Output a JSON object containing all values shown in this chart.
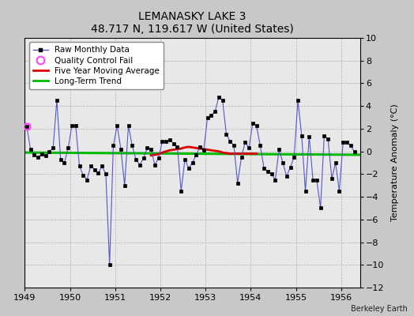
{
  "title": "LEMANASKY LAKE 3",
  "subtitle": "48.717 N, 119.617 W (United States)",
  "ylabel": "Temperature Anomaly (°C)",
  "credit": "Berkeley Earth",
  "xlim": [
    1949.0,
    1956.42
  ],
  "ylim": [
    -12,
    10
  ],
  "yticks": [
    -12,
    -10,
    -8,
    -6,
    -4,
    -2,
    0,
    2,
    4,
    6,
    8,
    10
  ],
  "xticks": [
    1949,
    1950,
    1951,
    1952,
    1953,
    1954,
    1955,
    1956
  ],
  "fig_bg_color": "#c8c8c8",
  "plot_bg_color": "#e8e8e8",
  "raw_x": [
    1949.042,
    1949.125,
    1949.208,
    1949.292,
    1949.375,
    1949.458,
    1949.542,
    1949.625,
    1949.708,
    1949.792,
    1949.875,
    1949.958,
    1950.042,
    1950.125,
    1950.208,
    1950.292,
    1950.375,
    1950.458,
    1950.542,
    1950.625,
    1950.708,
    1950.792,
    1950.875,
    1950.958,
    1951.042,
    1951.125,
    1951.208,
    1951.292,
    1951.375,
    1951.458,
    1951.542,
    1951.625,
    1951.708,
    1951.792,
    1951.875,
    1951.958,
    1952.042,
    1952.125,
    1952.208,
    1952.292,
    1952.375,
    1952.458,
    1952.542,
    1952.625,
    1952.708,
    1952.792,
    1952.875,
    1952.958,
    1953.042,
    1953.125,
    1953.208,
    1953.292,
    1953.375,
    1953.458,
    1953.542,
    1953.625,
    1953.708,
    1953.792,
    1953.875,
    1953.958,
    1954.042,
    1954.125,
    1954.208,
    1954.292,
    1954.375,
    1954.458,
    1954.542,
    1954.625,
    1954.708,
    1954.792,
    1954.875,
    1954.958,
    1955.042,
    1955.125,
    1955.208,
    1955.292,
    1955.375,
    1955.458,
    1955.542,
    1955.625,
    1955.708,
    1955.792,
    1955.875,
    1955.958,
    1956.042,
    1956.125,
    1956.208,
    1956.292
  ],
  "raw_y": [
    2.2,
    0.2,
    -0.3,
    -0.5,
    -0.2,
    -0.4,
    0.0,
    0.3,
    4.5,
    -0.7,
    -1.0,
    0.3,
    2.3,
    2.3,
    -1.3,
    -2.1,
    -2.5,
    -1.3,
    -1.6,
    -1.9,
    -1.3,
    -2.0,
    -10.0,
    0.5,
    2.3,
    0.2,
    -3.0,
    2.3,
    0.5,
    -0.7,
    -1.2,
    -0.6,
    0.3,
    0.2,
    -1.2,
    -0.6,
    0.9,
    0.9,
    1.0,
    0.7,
    0.4,
    -3.5,
    -0.7,
    -1.5,
    -1.0,
    -0.3,
    0.4,
    0.1,
    3.0,
    3.2,
    3.5,
    4.8,
    4.5,
    1.5,
    0.9,
    0.5,
    -2.8,
    -0.5,
    0.8,
    0.3,
    2.5,
    2.3,
    0.5,
    -1.5,
    -1.8,
    -2.0,
    -2.5,
    0.2,
    -1.0,
    -2.2,
    -1.4,
    -0.5,
    4.5,
    1.4,
    -3.5,
    1.3,
    -2.5,
    -2.5,
    -5.0,
    1.4,
    1.1,
    -2.4,
    -1.0,
    -3.5,
    0.8,
    0.8,
    0.5,
    0.0
  ],
  "qc_fail_x": [
    1949.042
  ],
  "qc_fail_y": [
    2.2
  ],
  "ma_x": [
    1951.792,
    1951.875,
    1951.958,
    1952.042,
    1952.125,
    1952.208,
    1952.292,
    1952.375,
    1952.458,
    1952.542,
    1952.625,
    1952.708,
    1952.792,
    1952.875,
    1952.958,
    1953.042,
    1953.125,
    1953.208,
    1953.292,
    1953.375,
    1953.458,
    1953.542,
    1953.625,
    1953.708,
    1953.792,
    1953.875,
    1953.958,
    1954.042,
    1954.125
  ],
  "ma_y": [
    -0.35,
    -0.3,
    -0.25,
    -0.1,
    0.0,
    0.1,
    0.15,
    0.2,
    0.25,
    0.35,
    0.4,
    0.35,
    0.3,
    0.25,
    0.2,
    0.15,
    0.1,
    0.05,
    0.0,
    -0.1,
    -0.15,
    -0.2,
    -0.2,
    -0.2,
    -0.2,
    -0.2,
    -0.2,
    -0.2,
    -0.2
  ],
  "trend_x": [
    1949.0,
    1956.42
  ],
  "trend_y": [
    -0.1,
    -0.3
  ],
  "raw_color": "#5555cc",
  "raw_marker_color": "#000000",
  "ma_color": "#dd0000",
  "trend_color": "#00bb00",
  "qc_color": "#ff44ff"
}
